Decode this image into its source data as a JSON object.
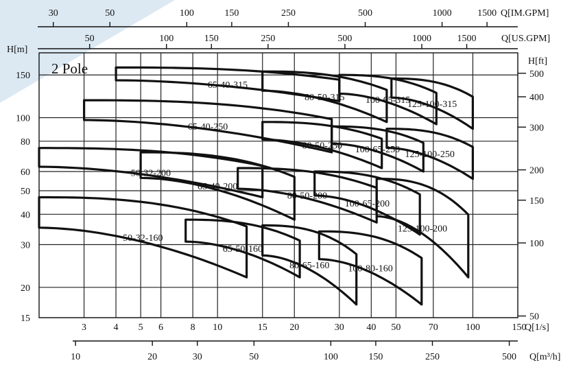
{
  "chart_data": {
    "type": "line",
    "title": "2 Pole",
    "log_scale": true,
    "grid": true,
    "y_left": {
      "label": "H[m]",
      "ticks": [
        15,
        20,
        30,
        40,
        50,
        60,
        80,
        100,
        150
      ],
      "range": [
        15,
        185
      ]
    },
    "y_right": {
      "label": "H[ft]",
      "ticks": [
        50,
        100,
        150,
        200,
        300,
        400,
        500
      ]
    },
    "x_ls": {
      "label": "Q[1/s]",
      "ticks": [
        3,
        4,
        5,
        6,
        8,
        10,
        15,
        20,
        30,
        40,
        50,
        70,
        100,
        150
      ],
      "range": [
        2,
        150
      ]
    },
    "x_m3h": {
      "label": "Q[m³/h]",
      "ticks": [
        10,
        20,
        30,
        50,
        100,
        150,
        250,
        500
      ]
    },
    "x_imgpm": {
      "label": "Q[IM.GPM]",
      "ticks": [
        30,
        50,
        100,
        150,
        250,
        500,
        1000,
        1500
      ]
    },
    "x_usgpm": {
      "label": "Q[US.GPM]",
      "ticks": [
        50,
        100,
        150,
        250,
        500,
        1000,
        1500
      ]
    },
    "series": [
      {
        "name": "65-40-315",
        "region": {
          "q": [
            4,
            30
          ],
          "h": [
            117,
            161
          ]
        }
      },
      {
        "name": "80-50-315",
        "region": {
          "q": [
            15,
            46
          ],
          "h": [
            96,
            155
          ]
        }
      },
      {
        "name": "100-65-315",
        "region": {
          "q": [
            30,
            72
          ],
          "h": [
            94,
            150
          ]
        }
      },
      {
        "name": "125-100-315",
        "region": {
          "q": [
            48,
            100
          ],
          "h": [
            90,
            145
          ]
        }
      },
      {
        "name": "65-40-250",
        "region": {
          "q": [
            3,
            28
          ],
          "h": [
            72,
            118
          ]
        }
      },
      {
        "name": "80-50-250",
        "region": {
          "q": [
            15,
            44
          ],
          "h": [
            62,
            96
          ]
        }
      },
      {
        "name": "100-65-250",
        "region": {
          "q": [
            28,
            64
          ],
          "h": [
            60,
            92
          ]
        }
      },
      {
        "name": "125-100-250",
        "region": {
          "q": [
            46,
            100
          ],
          "h": [
            56,
            90
          ]
        }
      },
      {
        "name": "50-32-200",
        "region": {
          "q": [
            2,
            15
          ],
          "h": [
            47,
            75
          ]
        }
      },
      {
        "name": "65-40-200",
        "region": {
          "q": [
            5,
            20
          ],
          "h": [
            38,
            72
          ]
        }
      },
      {
        "name": "80-50-200",
        "region": {
          "q": [
            12,
            42
          ],
          "h": [
            37,
            62
          ]
        }
      },
      {
        "name": "100-65-200",
        "region": {
          "q": [
            24,
            62
          ],
          "h": [
            33,
            60
          ]
        }
      },
      {
        "name": "125-100-200",
        "region": {
          "q": [
            42,
            96
          ],
          "h": [
            22,
            56
          ]
        }
      },
      {
        "name": "50-32-160",
        "region": {
          "q": [
            2,
            13
          ],
          "h": [
            22,
            47
          ]
        }
      },
      {
        "name": "65-50-160",
        "region": {
          "q": [
            7.5,
            21
          ],
          "h": [
            22,
            38
          ]
        }
      },
      {
        "name": "80-65-160",
        "region": {
          "q": [
            15,
            35
          ],
          "h": [
            17,
            36
          ]
        }
      },
      {
        "name": "100-80-160",
        "region": {
          "q": [
            25,
            63
          ],
          "h": [
            17,
            34
          ]
        }
      }
    ]
  }
}
